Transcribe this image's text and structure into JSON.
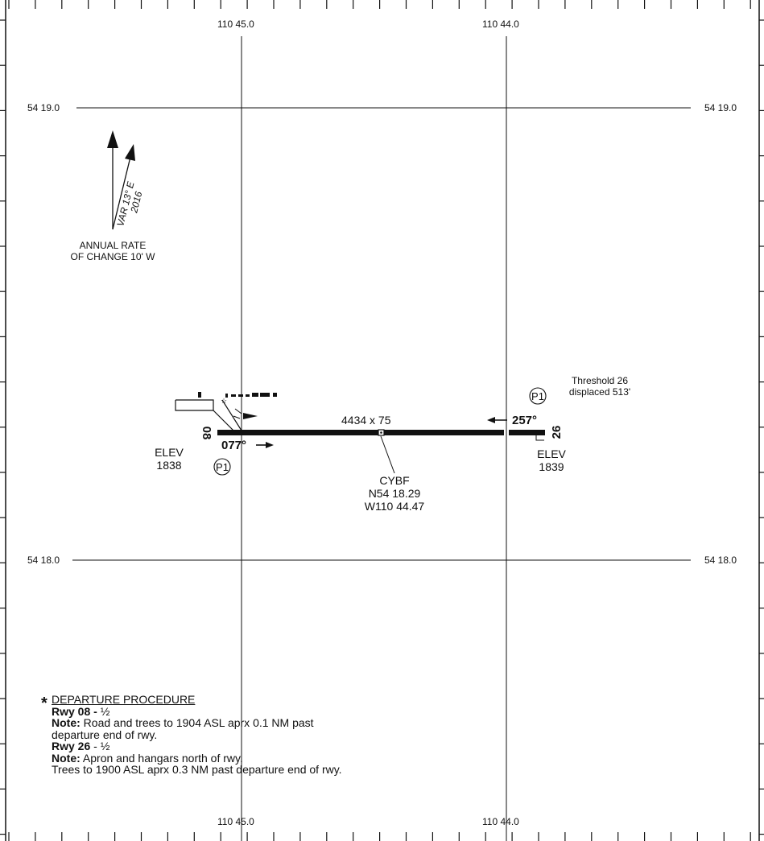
{
  "grid": {
    "lon_top": [
      "110 45.0",
      "110 44.0"
    ],
    "lon_bottom": [
      "110 45.0",
      "110 44.0"
    ],
    "lat_left": [
      "54 19.0",
      "54 18.0"
    ],
    "lat_right": [
      "54 19.0",
      "54 18.0"
    ]
  },
  "magnetic": {
    "variation": "VAR 13° E",
    "year": "2016",
    "annual_rate_line1": "ANNUAL RATE",
    "annual_rate_line2": "OF CHANGE 10' W"
  },
  "runway": {
    "dimensions": "4434 x 75",
    "rwy_west_number": "08",
    "rwy_east_number": "26",
    "heading_west": "077°",
    "heading_east": "257°",
    "threshold_note_line1": "Threshold 26",
    "threshold_note_line2": "displaced 513'"
  },
  "elevations": {
    "west_label": "ELEV",
    "west_value": "1838",
    "east_label": "ELEV",
    "east_value": "1839"
  },
  "airport": {
    "ident": "CYBF",
    "lat": "N54 18.29",
    "lon": "W110 44.47"
  },
  "symbols": {
    "p1_label": "P1"
  },
  "departure": {
    "title": "DEPARTURE PROCEDURE",
    "rwy08_label": "Rwy 08 -",
    "rwy08_value": "½",
    "note_label": "Note:",
    "rwy08_note_1": "Road and trees to 1904 ASL aprx 0.1 NM past",
    "rwy08_note_2": "departure end of rwy.",
    "rwy26_label": "Rwy 26",
    "rwy26_value": "-  ½",
    "rwy26_note_1": "Apron and hangars north of rwy.",
    "rwy26_note_2": "Trees to 1900 ASL aprx 0.3 NM past departure end of rwy."
  }
}
